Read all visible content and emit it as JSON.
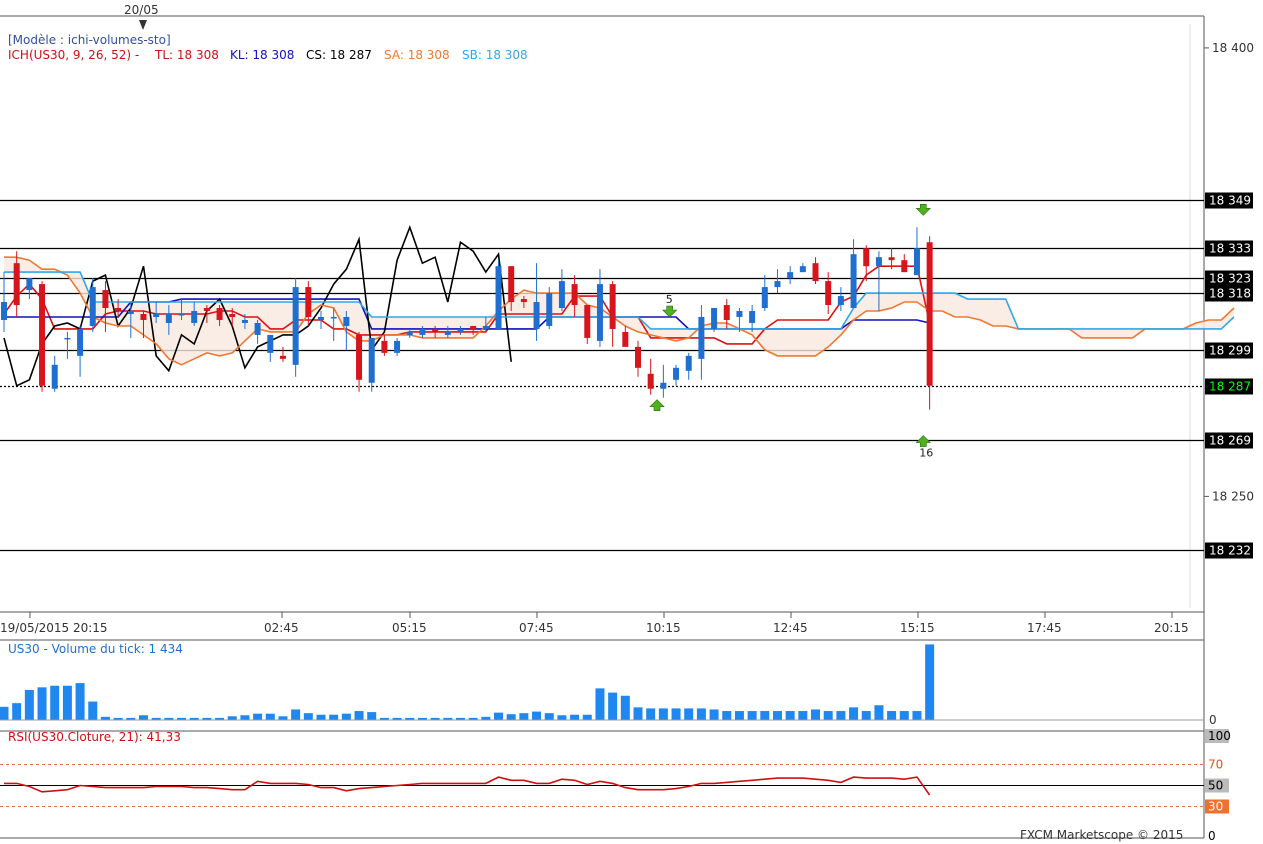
{
  "header": {
    "marker_date": "20/05",
    "model": "[Modèle : ichi-volumes-sto]",
    "ich_label": "ICH(US30, 9, 26, 52) -",
    "tl_label": "TL: 18 308",
    "kl_label": "KL: 18 308",
    "cs_label": "CS: 18 287",
    "sa_label": "SA: 18 308",
    "sb_label": "SB: 18 308"
  },
  "colors": {
    "bull": "#1f6fd0",
    "bear": "#d8141c",
    "tenkan": "#e01010",
    "kijun": "#1010c0",
    "chikou": "#000000",
    "senkou_a": "#f07830",
    "senkou_b": "#30a8e8",
    "volume": "#1e88f0",
    "rsi": "#d01010",
    "current_price_bg": "#000000",
    "current_price_fg": "#00ff00"
  },
  "footer": {
    "credit": "FXCM Marketscope © 2015"
  },
  "chart_data": [
    {
      "type": "candlestick",
      "title": "",
      "y_ticks": [
        "18 400",
        "18 250"
      ],
      "x_ticks": [
        "19/05/2015 20:15",
        "02:45",
        "05:15",
        "07:45",
        "10:15",
        "12:45",
        "15:15",
        "17:45",
        "20:15"
      ],
      "ylim": [
        18212,
        18410
      ],
      "levels": [
        {
          "value": 18349,
          "label": "18 349"
        },
        {
          "value": 18333,
          "label": "18 333"
        },
        {
          "value": 18323,
          "label": "18 323"
        },
        {
          "value": 18318,
          "label": "18 318"
        },
        {
          "value": 18299,
          "label": "18 299"
        },
        {
          "value": 18269,
          "label": "18 269"
        },
        {
          "value": 18232,
          "label": "18 232"
        }
      ],
      "current_price": {
        "value": 18287,
        "label": "18 287"
      },
      "candles": [
        [
          18309,
          18315,
          18325,
          18305
        ],
        [
          18328,
          18314,
          18332,
          18310
        ],
        [
          18319,
          18323,
          18323,
          18316
        ],
        [
          18321,
          18287,
          18322,
          18285
        ],
        [
          18286,
          18294,
          18297,
          18285
        ],
        [
          18303,
          18303,
          18305,
          18296
        ],
        [
          18297,
          18306,
          18307,
          18290
        ],
        [
          18307,
          18320,
          18323,
          18305
        ],
        [
          18319,
          18313,
          18322,
          18305
        ],
        [
          18313,
          18312,
          18316,
          18310
        ],
        [
          18311,
          18312,
          18315,
          18303
        ],
        [
          18311,
          18309,
          18312,
          18303
        ],
        [
          18310,
          18311,
          18315,
          18308
        ],
        [
          18308,
          18311,
          18314,
          18304
        ],
        [
          18311,
          18311,
          18316,
          18309
        ],
        [
          18308,
          18312,
          18315,
          18307
        ],
        [
          18313,
          18312,
          18314,
          18308
        ],
        [
          18313,
          18309,
          18314,
          18307
        ],
        [
          18311,
          18310,
          18313,
          18307
        ],
        [
          18308,
          18309,
          18311,
          18306
        ],
        [
          18304,
          18308,
          18309,
          18301
        ],
        [
          18298,
          18304,
          18304,
          18295
        ],
        [
          18297,
          18296,
          18300,
          18295
        ],
        [
          18294,
          18320,
          18323,
          18290
        ],
        [
          18320,
          18310,
          18322,
          18307
        ],
        [
          18309,
          18310,
          18312,
          18306
        ],
        [
          18310,
          18310,
          18313,
          18302
        ],
        [
          18307,
          18310,
          18312,
          18299
        ],
        [
          18304,
          18289,
          18305,
          18285
        ],
        [
          18288,
          18303,
          18303,
          18285
        ],
        [
          18302,
          18298,
          18304,
          18297
        ],
        [
          18298,
          18302,
          18303,
          18297
        ],
        [
          18304,
          18305,
          18306,
          18303
        ],
        [
          18304,
          18306,
          18307,
          18303
        ],
        [
          18306,
          18305,
          18307,
          18303
        ],
        [
          18304,
          18305,
          18307,
          18303
        ],
        [
          18305,
          18306,
          18307,
          18304
        ],
        [
          18307,
          18306,
          18307,
          18304
        ],
        [
          18306,
          18307,
          18310,
          18305
        ],
        [
          18306,
          18327,
          18329,
          18306
        ],
        [
          18327,
          18315,
          18327,
          18312
        ],
        [
          18316,
          18315,
          18317,
          18313
        ],
        [
          18306,
          18315,
          18328,
          18302
        ],
        [
          18307,
          18318,
          18320,
          18306
        ],
        [
          18313,
          18322,
          18326,
          18312
        ],
        [
          18321,
          18314,
          18324,
          18310
        ],
        [
          18314,
          18303,
          18313,
          18301
        ],
        [
          18302,
          18321,
          18326,
          18300
        ],
        [
          18321,
          18306,
          18322,
          18300
        ],
        [
          18305,
          18300,
          18307,
          18301
        ],
        [
          18300,
          18293,
          18302,
          18290
        ],
        [
          18291,
          18286,
          18296,
          18284
        ],
        [
          18286,
          18288,
          18294,
          18283
        ],
        [
          18289,
          18293,
          18294,
          18287
        ],
        [
          18292,
          18297,
          18298,
          18289
        ],
        [
          18296,
          18310,
          18314,
          18289
        ],
        [
          18306,
          18313,
          18313,
          18305
        ],
        [
          18314,
          18309,
          18316,
          18306
        ],
        [
          18310,
          18312,
          18313,
          18305
        ],
        [
          18308,
          18312,
          18314,
          18305
        ],
        [
          18313,
          18320,
          18324,
          18312
        ],
        [
          18320,
          18322,
          18326,
          18318
        ],
        [
          18323,
          18325,
          18327,
          18321
        ],
        [
          18325,
          18327,
          18328,
          18325
        ],
        [
          18328,
          18322,
          18330,
          18321
        ],
        [
          18322,
          18314,
          18325,
          18311
        ],
        [
          18314,
          18317,
          18320,
          18312
        ],
        [
          18313,
          18331,
          18336,
          18313
        ],
        [
          18333,
          18327,
          18334,
          18322
        ],
        [
          18327,
          18330,
          18332,
          18312
        ],
        [
          18330,
          18329,
          18333,
          18326
        ],
        [
          18329,
          18325,
          18331,
          18325
        ],
        [
          18324,
          18333,
          18340,
          18324
        ],
        [
          18335,
          18287,
          18337,
          18279
        ]
      ],
      "series": [
        {
          "name": "TL",
          "values": [
            18311,
            18317,
            18321,
            18316,
            18306,
            18306,
            18306,
            18306,
            18311,
            18312,
            18312,
            18312,
            18311,
            18311,
            18311,
            18311,
            18311,
            18312,
            18312,
            18310,
            18310,
            18306,
            18306,
            18309,
            18309,
            18309,
            18306,
            18306,
            18304,
            18304,
            18304,
            18304,
            18305,
            18305,
            18305,
            18305,
            18305,
            18305,
            18305,
            18311,
            18311,
            18311,
            18311,
            18311,
            18311,
            18317,
            18317,
            18317,
            18310,
            18310,
            18310,
            18303,
            18303,
            18303,
            18303,
            18303,
            18303,
            18301,
            18301,
            18301,
            18306,
            18309,
            18309,
            18309,
            18309,
            18309,
            18315,
            18317,
            18324,
            18327,
            18327,
            18327,
            18327,
            18308
          ]
        },
        {
          "name": "KL",
          "values": [
            18310,
            18310,
            18310,
            18310,
            18310,
            18310,
            18310,
            18310,
            18310,
            18310,
            18315,
            18315,
            18315,
            18315,
            18316,
            18316,
            18316,
            18316,
            18316,
            18316,
            18316,
            18316,
            18316,
            18316,
            18316,
            18316,
            18316,
            18316,
            18316,
            18306,
            18306,
            18306,
            18306,
            18306,
            18306,
            18306,
            18306,
            18306,
            18306,
            18306,
            18306,
            18306,
            18306,
            18310,
            18310,
            18310,
            18310,
            18310,
            18310,
            18310,
            18310,
            18310,
            18310,
            18310,
            18306,
            18306,
            18306,
            18306,
            18306,
            18306,
            18306,
            18306,
            18306,
            18306,
            18306,
            18306,
            18306,
            18309,
            18309,
            18309,
            18309,
            18309,
            18309,
            18308
          ]
        },
        {
          "name": "CS",
          "values": [
            18303,
            18287,
            18289,
            18301,
            18307,
            18308,
            18306,
            18322,
            18324,
            18307,
            18313,
            18327,
            18297,
            18292,
            18304,
            18301,
            18312,
            18316,
            18307,
            18293,
            18300,
            18302,
            18304,
            18304,
            18307,
            18313,
            18321,
            18326,
            18336,
            18299,
            18305,
            18329,
            18340,
            18328,
            18330,
            18315,
            18335,
            18332,
            18325,
            18331,
            18295,
            null,
            null,
            null,
            null,
            null,
            null,
            null,
            null,
            null,
            null,
            null,
            null,
            null,
            null,
            null,
            null,
            null,
            null,
            null,
            null,
            null,
            null,
            null,
            null,
            null,
            null,
            null,
            null,
            null,
            null,
            null,
            null,
            null
          ]
        },
        {
          "name": "SA",
          "values": [
            18330,
            18330,
            18329,
            18326,
            18326,
            18324,
            18318,
            18310,
            18308,
            18307,
            18307,
            18304,
            18301,
            18296,
            18294,
            18296,
            18298,
            18297,
            18298,
            18302,
            18306,
            18305,
            18305,
            18305,
            18311,
            18314,
            18313,
            18305,
            18302,
            18302,
            18304,
            18304,
            18304,
            18303,
            18303,
            18303,
            18303,
            18303,
            18307,
            18312,
            18316,
            18319,
            18318,
            18318,
            18318,
            18318,
            18314,
            18313,
            18310,
            18307,
            18305,
            18304,
            18303,
            18302,
            18303,
            18307,
            18308,
            18308,
            18306,
            18304,
            18299,
            18297,
            18297,
            18297,
            18297,
            18300,
            18304,
            18309,
            18312,
            18312,
            18313,
            18315,
            18315,
            18312,
            18312,
            18310,
            18310,
            18309,
            18307,
            18307,
            18306,
            18306,
            18306,
            18306,
            18306,
            18303,
            18303,
            18303,
            18303,
            18303,
            18306,
            18306,
            18306,
            18306,
            18308,
            18309,
            18309,
            18313
          ]
        },
        {
          "name": "SB",
          "values": [
            18325,
            18325,
            18325,
            18325,
            18325,
            18325,
            18325,
            18315,
            18315,
            18315,
            18315,
            18315,
            18315,
            18315,
            18315,
            18315,
            18315,
            18315,
            18315,
            18315,
            18315,
            18315,
            18315,
            18315,
            18315,
            18315,
            18315,
            18315,
            18315,
            18310,
            18310,
            18310,
            18310,
            18310,
            18310,
            18310,
            18310,
            18310,
            18310,
            18310,
            18310,
            18310,
            18310,
            18310,
            18310,
            18310,
            18310,
            18310,
            18310,
            18310,
            18310,
            18306,
            18306,
            18306,
            18306,
            18306,
            18306,
            18306,
            18306,
            18306,
            18306,
            18306,
            18306,
            18306,
            18306,
            18306,
            18306,
            18313,
            18318,
            18318,
            18318,
            18318,
            18318,
            18318,
            18318,
            18318,
            18316,
            18316,
            18316,
            18316,
            18306,
            18306,
            18306,
            18306,
            18306,
            18306,
            18306,
            18306,
            18306,
            18306,
            18306,
            18306,
            18306,
            18306,
            18306,
            18306,
            18306,
            18310
          ]
        }
      ],
      "annotations": [
        {
          "label": "5",
          "arrow": "down",
          "index": 52.5
        },
        {
          "label": "",
          "arrow": "up",
          "index": 51.5
        },
        {
          "label": "",
          "arrow": "down",
          "index": 72.5
        },
        {
          "label": "16",
          "arrow": "up",
          "index": 72.5
        }
      ]
    },
    {
      "type": "bar",
      "title": "US30 - Volume du tick: 1 434",
      "y_ticks": [
        "0"
      ],
      "ylim": [
        0,
        1480
      ],
      "values": [
        250,
        320,
        570,
        620,
        650,
        650,
        700,
        350,
        60,
        40,
        40,
        90,
        40,
        40,
        40,
        40,
        40,
        40,
        70,
        90,
        120,
        120,
        70,
        200,
        130,
        100,
        100,
        120,
        170,
        150,
        40,
        40,
        40,
        40,
        40,
        40,
        40,
        40,
        60,
        140,
        110,
        130,
        160,
        130,
        90,
        100,
        100,
        600,
        520,
        460,
        240,
        220,
        220,
        220,
        220,
        220,
        200,
        170,
        170,
        170,
        170,
        170,
        170,
        170,
        200,
        170,
        170,
        240,
        170,
        280,
        170,
        170,
        170,
        1434
      ]
    },
    {
      "type": "line",
      "title": "RSI(US30.Cloture, 21): 41,33",
      "y_ticks": [
        "100",
        "70",
        "50",
        "30",
        "0"
      ],
      "ylim": [
        0,
        100
      ],
      "levels": [
        70,
        50,
        30
      ],
      "values": [
        52,
        52,
        49,
        44,
        45,
        46,
        50,
        49,
        48,
        48,
        48,
        48,
        49,
        49,
        49,
        48,
        48,
        47,
        46,
        46,
        54,
        52,
        52,
        52,
        51,
        48,
        48,
        45,
        47,
        48,
        49,
        50,
        51,
        52,
        52,
        52,
        52,
        52,
        52,
        58,
        55,
        55,
        52,
        52,
        56,
        55,
        51,
        54,
        52,
        48,
        46,
        46,
        46,
        47,
        49,
        52,
        52,
        53,
        54,
        55,
        56,
        57,
        57,
        57,
        56,
        55,
        53,
        58,
        57,
        57,
        57,
        56,
        58,
        41
      ]
    }
  ]
}
